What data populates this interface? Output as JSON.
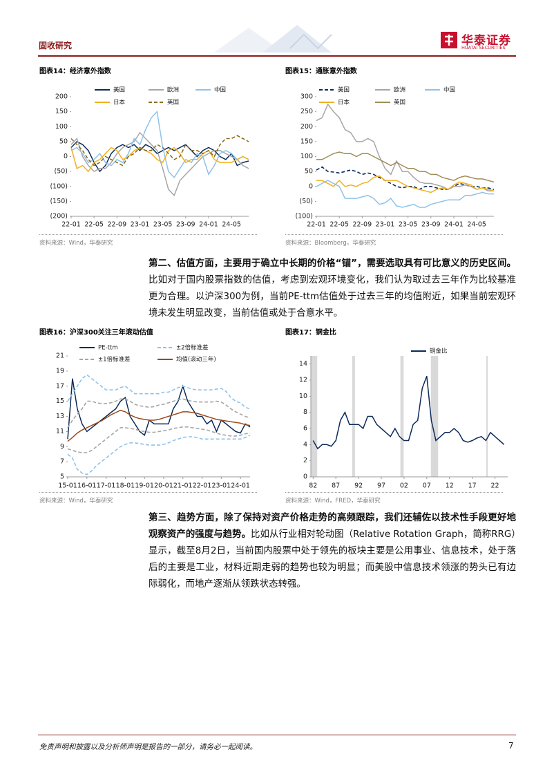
{
  "header": {
    "section": "固收研究",
    "logo": "华泰证券",
    "logo_sub": "HUATAI SECURITIES"
  },
  "body": {
    "paragraphs": [
      {
        "lead": "第二、估值方面，主要用于确立中长期的价格“锚”，需要选取具有可比意义的历史区间。",
        "text": "比如对于国内股票指数的估值，考虑到宏观环境变化，我们认为取过去三年作为比较基准更为合理。以沪深300为例，当前PE-ttm估值处于过去三年的均值附近，如果当前宏观环境未发生明显改变，当前估值或处于合意水平。"
      },
      {
        "lead": "第三、趋势方面，除了保持对资产价格走势的高频跟踪，我们还辅佐以技术性手段更好地观察资产的强度与趋势。",
        "text": "比如从行业相对轮动图（Relative Rotation Graph，简称RRG）显示，截至8月2日，当前国内股票中处于领先的板块主要是公用事业、信息技术，处于落后的主要是工业，材料近期走弱的趋势也较为明显；而美股中信息技术领涨的势头已有边际弱化，而地产逐渐从领跌状态转强。"
      }
    ]
  },
  "footer": {
    "disclaimer": "免责声明和披露以及分析师声明是报告的一部分，请务必一起阅读。",
    "page": "7"
  },
  "chart_data": [
    {
      "type": "line",
      "title": "图表14：经济意外指数",
      "source": "资料来源：Wind，华泰研究",
      "x": [
        "22-01",
        "22-02",
        "22-03",
        "22-04",
        "22-05",
        "22-06",
        "22-07",
        "22-08",
        "22-09",
        "22-10",
        "22-11",
        "22-12",
        "23-01",
        "23-02",
        "23-03",
        "23-04",
        "23-05",
        "23-06",
        "23-07",
        "23-08",
        "23-09",
        "23-10",
        "23-11",
        "23-12",
        "24-01",
        "24-02",
        "24-03",
        "24-04",
        "24-05",
        "24-06",
        "24-07",
        "24-08"
      ],
      "xticks": [
        "22-01",
        "22-05",
        "22-09",
        "23-01",
        "23-05",
        "23-09",
        "24-01",
        "24-05"
      ],
      "ylim": [
        -200,
        200
      ],
      "yticks": [
        200,
        150,
        100,
        50,
        0,
        {
          "value": -50,
          "label": "(50)"
        },
        {
          "value": -100,
          "label": "(100)"
        },
        {
          "value": -150,
          "label": "(150)"
        },
        {
          "value": -200,
          "label": "(200)"
        }
      ],
      "series": [
        {
          "name": "美国",
          "color": "#0b2a5b",
          "values": [
            30,
            50,
            40,
            20,
            -20,
            -50,
            -30,
            10,
            30,
            40,
            30,
            40,
            20,
            40,
            30,
            10,
            20,
            30,
            20,
            30,
            40,
            20,
            0,
            20,
            30,
            20,
            0,
            -10,
            10,
            -30,
            -20,
            -15
          ]
        },
        {
          "name": "欧洲",
          "color": "#a6a6a6",
          "values": [
            40,
            60,
            0,
            -30,
            -50,
            -40,
            -40,
            -20,
            10,
            30,
            40,
            50,
            80,
            60,
            40,
            20,
            -40,
            -110,
            -130,
            -80,
            -60,
            -40,
            -20,
            0,
            10,
            20,
            20,
            10,
            0,
            -10,
            -30,
            -40
          ]
        },
        {
          "name": "中国",
          "color": "#8ec2ea",
          "values": [
            20,
            30,
            10,
            -20,
            -10,
            10,
            -20,
            -30,
            -10,
            -20,
            10,
            60,
            40,
            90,
            130,
            150,
            30,
            -50,
            -70,
            -40,
            -10,
            -20,
            10,
            0,
            -60,
            -30,
            10,
            20,
            10,
            -10,
            0,
            -10
          ]
        },
        {
          "name": "日本",
          "color": "#f2b01e",
          "values": [
            30,
            -40,
            -30,
            -50,
            -20,
            -10,
            10,
            30,
            20,
            -10,
            0,
            20,
            30,
            20,
            10,
            -10,
            -20,
            20,
            30,
            10,
            -20,
            -10,
            -10,
            10,
            20,
            -10,
            -20,
            -20,
            -20,
            -10,
            0,
            -10
          ]
        },
        {
          "name": "英国",
          "color": "#8a6d1e",
          "dash": true,
          "values": [
            60,
            40,
            20,
            -10,
            -30,
            -20,
            0,
            -10,
            -20,
            -30,
            0,
            10,
            30,
            20,
            20,
            40,
            30,
            10,
            -10,
            0,
            40,
            20,
            20,
            10,
            20,
            0,
            40,
            60,
            60,
            70,
            60,
            50
          ]
        }
      ]
    },
    {
      "type": "line",
      "title": "图表15：通胀意外指数",
      "source": "资料来源：Bloomberg，华泰研究",
      "x": [
        "22-01",
        "22-02",
        "22-03",
        "22-04",
        "22-05",
        "22-06",
        "22-07",
        "22-08",
        "22-09",
        "22-10",
        "22-11",
        "22-12",
        "23-01",
        "23-02",
        "23-03",
        "23-04",
        "23-05",
        "23-06",
        "23-07",
        "23-08",
        "23-09",
        "23-10",
        "23-11",
        "23-12",
        "24-01",
        "24-02",
        "24-03",
        "24-04",
        "24-05",
        "24-06",
        "24-07",
        "24-08"
      ],
      "xticks": [
        "22-01",
        "22-05",
        "22-09",
        "23-01",
        "23-05",
        "23-09",
        "24-01",
        "24-05"
      ],
      "ylim": [
        -100,
        300
      ],
      "yticks": [
        300,
        250,
        200,
        150,
        100,
        50,
        0,
        {
          "value": -50,
          "label": "(50)"
        },
        {
          "value": -100,
          "label": "(100)"
        }
      ],
      "series": [
        {
          "name": "美国",
          "color": "#0b2a5b",
          "dash": true,
          "values": [
            55,
            65,
            50,
            48,
            45,
            50,
            55,
            50,
            40,
            45,
            40,
            30,
            20,
            10,
            0,
            -5,
            0,
            0,
            -10,
            0,
            0,
            -5,
            -10,
            -10,
            0,
            10,
            5,
            0,
            0,
            -5,
            -5,
            -10
          ]
        },
        {
          "name": "欧洲",
          "color": "#a6a6a6",
          "values": [
            220,
            230,
            275,
            250,
            230,
            190,
            180,
            150,
            150,
            160,
            150,
            100,
            60,
            40,
            85,
            50,
            50,
            30,
            15,
            10,
            10,
            5,
            0,
            -10,
            0,
            0,
            5,
            0,
            -10,
            -5,
            -15,
            -15
          ]
        },
        {
          "name": "中国",
          "color": "#8ec2ea",
          "values": [
            0,
            10,
            20,
            10,
            0,
            -40,
            -40,
            -40,
            -35,
            -30,
            -40,
            -60,
            -55,
            -40,
            -65,
            -70,
            -65,
            -60,
            -70,
            -70,
            -60,
            -55,
            -50,
            -45,
            -45,
            -45,
            -30,
            -30,
            -25,
            -20,
            -25,
            -25
          ]
        },
        {
          "name": "日本",
          "color": "#f2b01e",
          "values": [
            20,
            20,
            10,
            0,
            20,
            0,
            5,
            0,
            10,
            15,
            30,
            35,
            20,
            20,
            20,
            10,
            0,
            -5,
            -10,
            -15,
            -20,
            -10,
            -5,
            -10,
            5,
            15,
            10,
            5,
            -10,
            -5,
            -10,
            -15
          ]
        },
        {
          "name": "英国",
          "color": "#a08c5a",
          "values": [
            90,
            90,
            100,
            110,
            115,
            110,
            110,
            100,
            110,
            110,
            100,
            90,
            80,
            70,
            80,
            70,
            60,
            60,
            50,
            50,
            40,
            40,
            30,
            25,
            20,
            30,
            35,
            30,
            25,
            25,
            20,
            15
          ]
        }
      ]
    },
    {
      "type": "line",
      "title": "图表16：沪深300关注三年滚动估值",
      "source": "资料来源：Wind，华泰研究",
      "x": [
        "15-01",
        "15-04",
        "15-07",
        "15-10",
        "16-01",
        "16-04",
        "16-07",
        "16-10",
        "17-01",
        "17-04",
        "17-07",
        "17-10",
        "18-01",
        "18-04",
        "18-07",
        "18-10",
        "19-01",
        "19-04",
        "19-07",
        "19-10",
        "20-01",
        "20-04",
        "20-07",
        "20-10",
        "21-01",
        "21-04",
        "21-07",
        "21-10",
        "22-01",
        "22-04",
        "22-07",
        "22-10",
        "23-01",
        "23-04",
        "23-07",
        "23-10",
        "24-01",
        "24-04",
        "24-07"
      ],
      "xticks": [
        "15-01",
        "16-01",
        "17-01",
        "18-01",
        "19-01",
        "20-01",
        "21-01",
        "22-01",
        "23-01",
        "24-01"
      ],
      "ylim": [
        5,
        21
      ],
      "yticks": [
        5,
        7,
        9,
        11,
        13,
        15,
        17,
        19,
        21
      ],
      "series": [
        {
          "name": "PE-ttm",
          "color": "#0b2a5b",
          "values": [
            10,
            18,
            14,
            12,
            11,
            11.5,
            12,
            12.5,
            13,
            13.5,
            14,
            15,
            15.5,
            13,
            12,
            11,
            10.5,
            12.5,
            12,
            12,
            12,
            12,
            14,
            15,
            17,
            15,
            14,
            13,
            13,
            12,
            12.5,
            11,
            12.5,
            12,
            11.5,
            11,
            10.8,
            12,
            11.6
          ]
        },
        {
          "name": "±2倍标准差",
          "color": "#8ec2ea",
          "dash": true,
          "upper": [
            15,
            16,
            17,
            18,
            18.5,
            18,
            17.5,
            17,
            16.5,
            16.5,
            16.5,
            16.8,
            17,
            16.5,
            16,
            16,
            16,
            16,
            16,
            16,
            16.2,
            16.2,
            16.5,
            16.8,
            17,
            16.8,
            16.6,
            16.5,
            16.5,
            16.5,
            16.5,
            16.6,
            16.7,
            16.3,
            15.5,
            15,
            14.8,
            14.2,
            14
          ],
          "lower": [
            8,
            7.5,
            6,
            5.5,
            5.3,
            5.8,
            6.5,
            7,
            7.5,
            8,
            8.5,
            9,
            9.3,
            9.5,
            9.5,
            9.4,
            9.3,
            9.2,
            9.2,
            9.2,
            9.3,
            9.5,
            9.8,
            10,
            10.2,
            10.3,
            10.3,
            10.2,
            10,
            10,
            10,
            10,
            10,
            10,
            10,
            10,
            10,
            10.2,
            10.5
          ]
        },
        {
          "name": "±1倍标准差",
          "color": "#a6a6a6",
          "dash": true,
          "upper": [
            11.5,
            12.5,
            13.3,
            14,
            15,
            15,
            14.8,
            14.7,
            14.7,
            14.8,
            15,
            15.3,
            15.3,
            15,
            14.6,
            14.4,
            14.3,
            14.2,
            14.3,
            14.5,
            14.6,
            14.8,
            15,
            15.2,
            15.3,
            15.1,
            15,
            14.9,
            14.9,
            14.9,
            14.9,
            15,
            14.9,
            14.5,
            14,
            13.6,
            13.3,
            13,
            12.8
          ],
          "lower": [
            8.7,
            8.5,
            8.3,
            8.2,
            8.2,
            8.5,
            9,
            9.5,
            10,
            10.5,
            11,
            11.5,
            11.5,
            11.4,
            11.3,
            11.1,
            11,
            10.9,
            10.9,
            11,
            11.1,
            11.2,
            11.4,
            11.5,
            11.6,
            11.6,
            11.5,
            11.4,
            11.3,
            11.2,
            11,
            10.8,
            10.6,
            10.5,
            10.4,
            10.4,
            10.5,
            10.7,
            10.8
          ]
        },
        {
          "name": "均值(滚动三年)",
          "color": "#9a4a1a",
          "values": [
            9.7,
            10.2,
            10.8,
            11.2,
            11.5,
            11.8,
            12.1,
            12.4,
            12.8,
            13.2,
            13.5,
            13.8,
            13.6,
            13.2,
            12.9,
            12.7,
            12.6,
            12.5,
            12.5,
            12.6,
            12.8,
            13,
            13.2,
            13.4,
            13.6,
            13.6,
            13.5,
            13.4,
            13.2,
            13,
            12.8,
            12.6,
            12.5,
            12.4,
            12.3,
            12.2,
            12.1,
            11.9,
            11.8
          ]
        }
      ]
    },
    {
      "type": "line",
      "title": "图表17：铜金比",
      "source": "资料来源：Wind，FRED，华泰研究",
      "x": [
        1982,
        1983,
        1984,
        1985,
        1986,
        1987,
        1988,
        1989,
        1990,
        1991,
        1992,
        1993,
        1994,
        1995,
        1996,
        1997,
        1998,
        1999,
        2000,
        2001,
        2002,
        2003,
        2004,
        2005,
        2006,
        2007,
        2008,
        2009,
        2010,
        2011,
        2012,
        2013,
        2014,
        2015,
        2016,
        2017,
        2018,
        2019,
        2020,
        2021,
        2022,
        2023,
        2024
      ],
      "xlim": [
        1981.5,
        2024.8
      ],
      "xticks": [
        {
          "value": 1982,
          "label": "82"
        },
        {
          "value": 1987,
          "label": "87"
        },
        {
          "value": 1992,
          "label": "92"
        },
        {
          "value": 1997,
          "label": "97"
        },
        {
          "value": 2002,
          "label": "02"
        },
        {
          "value": 2007,
          "label": "07"
        },
        {
          "value": 2012,
          "label": "12"
        },
        {
          "value": 2017,
          "label": "17"
        },
        {
          "value": 2022,
          "label": "22"
        }
      ],
      "ylim": [
        0,
        15
      ],
      "yticks": [
        0,
        2,
        4,
        6,
        8,
        10,
        12,
        14
      ],
      "shaded_periods": [
        [
          1981.5,
          1982.9
        ],
        [
          1990.6,
          1991.2
        ],
        [
          2001.2,
          2001.9
        ],
        [
          2007.9,
          2009.5
        ],
        [
          2020.1,
          2020.4
        ]
      ],
      "shade_color": "#d9d9d9",
      "series": [
        {
          "name": "铜金比",
          "color": "#0b2a5b",
          "values": [
            4.5,
            3.5,
            4,
            4,
            3.8,
            4.5,
            7,
            8,
            6.5,
            6.5,
            6.5,
            6,
            7.5,
            7.5,
            6.5,
            6,
            5.5,
            5,
            6,
            5,
            4.5,
            4.5,
            6.5,
            7,
            11,
            12.5,
            7,
            4.5,
            5,
            5.5,
            5.5,
            6,
            5.5,
            4.5,
            4.3,
            4.5,
            4.8,
            5,
            4.5,
            5.5,
            5,
            4.5,
            4
          ]
        }
      ]
    }
  ]
}
